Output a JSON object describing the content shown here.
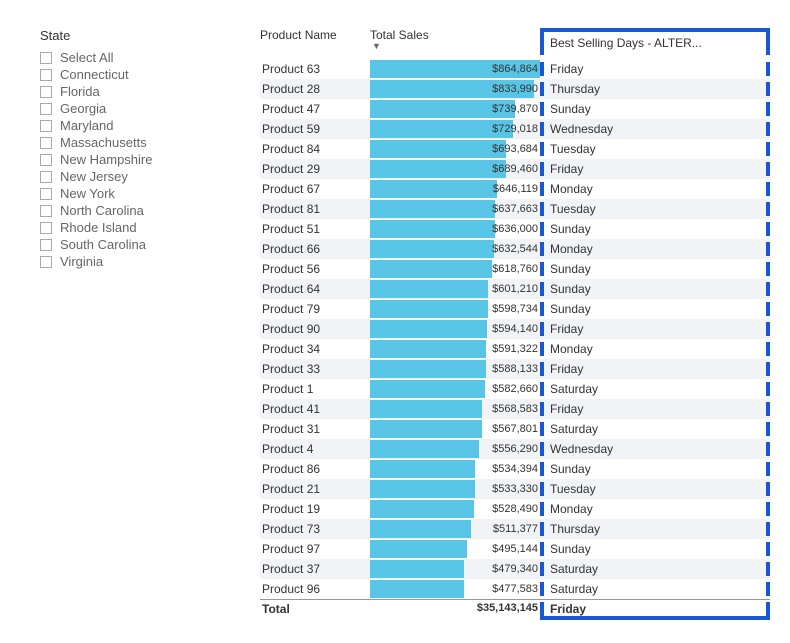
{
  "slicer": {
    "title": "State",
    "items": [
      "Select All",
      "Connecticut",
      "Florida",
      "Georgia",
      "Maryland",
      "Massachusetts",
      "New Hampshire",
      "New Jersey",
      "New York",
      "North Carolina",
      "Rhode Island",
      "South Carolina",
      "Virginia"
    ]
  },
  "table": {
    "headers": {
      "name": "Product Name",
      "sales": "Total Sales",
      "day": "Best Selling Days - ALTER..."
    },
    "bar_color": "#58c4e6",
    "alt_row_color": "#f1f3f6",
    "highlight_border_color": "#1857d6",
    "max_value": 864864,
    "rows": [
      {
        "name": "Product 63",
        "sales_label": "$864,864",
        "value": 864864,
        "day": "Friday"
      },
      {
        "name": "Product 28",
        "sales_label": "$833,990",
        "value": 833990,
        "day": "Thursday"
      },
      {
        "name": "Product 47",
        "sales_label": "$739,870",
        "value": 739870,
        "day": "Sunday"
      },
      {
        "name": "Product 59",
        "sales_label": "$729,018",
        "value": 729018,
        "day": "Wednesday"
      },
      {
        "name": "Product 84",
        "sales_label": "$693,684",
        "value": 693684,
        "day": "Tuesday"
      },
      {
        "name": "Product 29",
        "sales_label": "$689,460",
        "value": 689460,
        "day": "Friday"
      },
      {
        "name": "Product 67",
        "sales_label": "$646,119",
        "value": 646119,
        "day": "Monday"
      },
      {
        "name": "Product 81",
        "sales_label": "$637,663",
        "value": 637663,
        "day": "Tuesday"
      },
      {
        "name": "Product 51",
        "sales_label": "$636,000",
        "value": 636000,
        "day": "Sunday"
      },
      {
        "name": "Product 66",
        "sales_label": "$632,544",
        "value": 632544,
        "day": "Monday"
      },
      {
        "name": "Product 56",
        "sales_label": "$618,760",
        "value": 618760,
        "day": "Sunday"
      },
      {
        "name": "Product 64",
        "sales_label": "$601,210",
        "value": 601210,
        "day": "Sunday"
      },
      {
        "name": "Product 79",
        "sales_label": "$598,734",
        "value": 598734,
        "day": "Sunday"
      },
      {
        "name": "Product 90",
        "sales_label": "$594,140",
        "value": 594140,
        "day": "Friday"
      },
      {
        "name": "Product 34",
        "sales_label": "$591,322",
        "value": 591322,
        "day": "Monday"
      },
      {
        "name": "Product 33",
        "sales_label": "$588,133",
        "value": 588133,
        "day": "Friday"
      },
      {
        "name": "Product 1",
        "sales_label": "$582,660",
        "value": 582660,
        "day": "Saturday"
      },
      {
        "name": "Product 41",
        "sales_label": "$568,583",
        "value": 568583,
        "day": "Friday"
      },
      {
        "name": "Product 31",
        "sales_label": "$567,801",
        "value": 567801,
        "day": "Saturday"
      },
      {
        "name": "Product 4",
        "sales_label": "$556,290",
        "value": 556290,
        "day": "Wednesday"
      },
      {
        "name": "Product 86",
        "sales_label": "$534,394",
        "value": 534394,
        "day": "Sunday"
      },
      {
        "name": "Product 21",
        "sales_label": "$533,330",
        "value": 533330,
        "day": "Tuesday"
      },
      {
        "name": "Product 19",
        "sales_label": "$528,490",
        "value": 528490,
        "day": "Monday"
      },
      {
        "name": "Product 73",
        "sales_label": "$511,377",
        "value": 511377,
        "day": "Thursday"
      },
      {
        "name": "Product 97",
        "sales_label": "$495,144",
        "value": 495144,
        "day": "Sunday"
      },
      {
        "name": "Product 37",
        "sales_label": "$479,340",
        "value": 479340,
        "day": "Saturday"
      },
      {
        "name": "Product 96",
        "sales_label": "$477,583",
        "value": 477583,
        "day": "Saturday"
      }
    ],
    "total": {
      "label": "Total",
      "sales_label": "$35,143,145",
      "day": "Friday"
    }
  }
}
